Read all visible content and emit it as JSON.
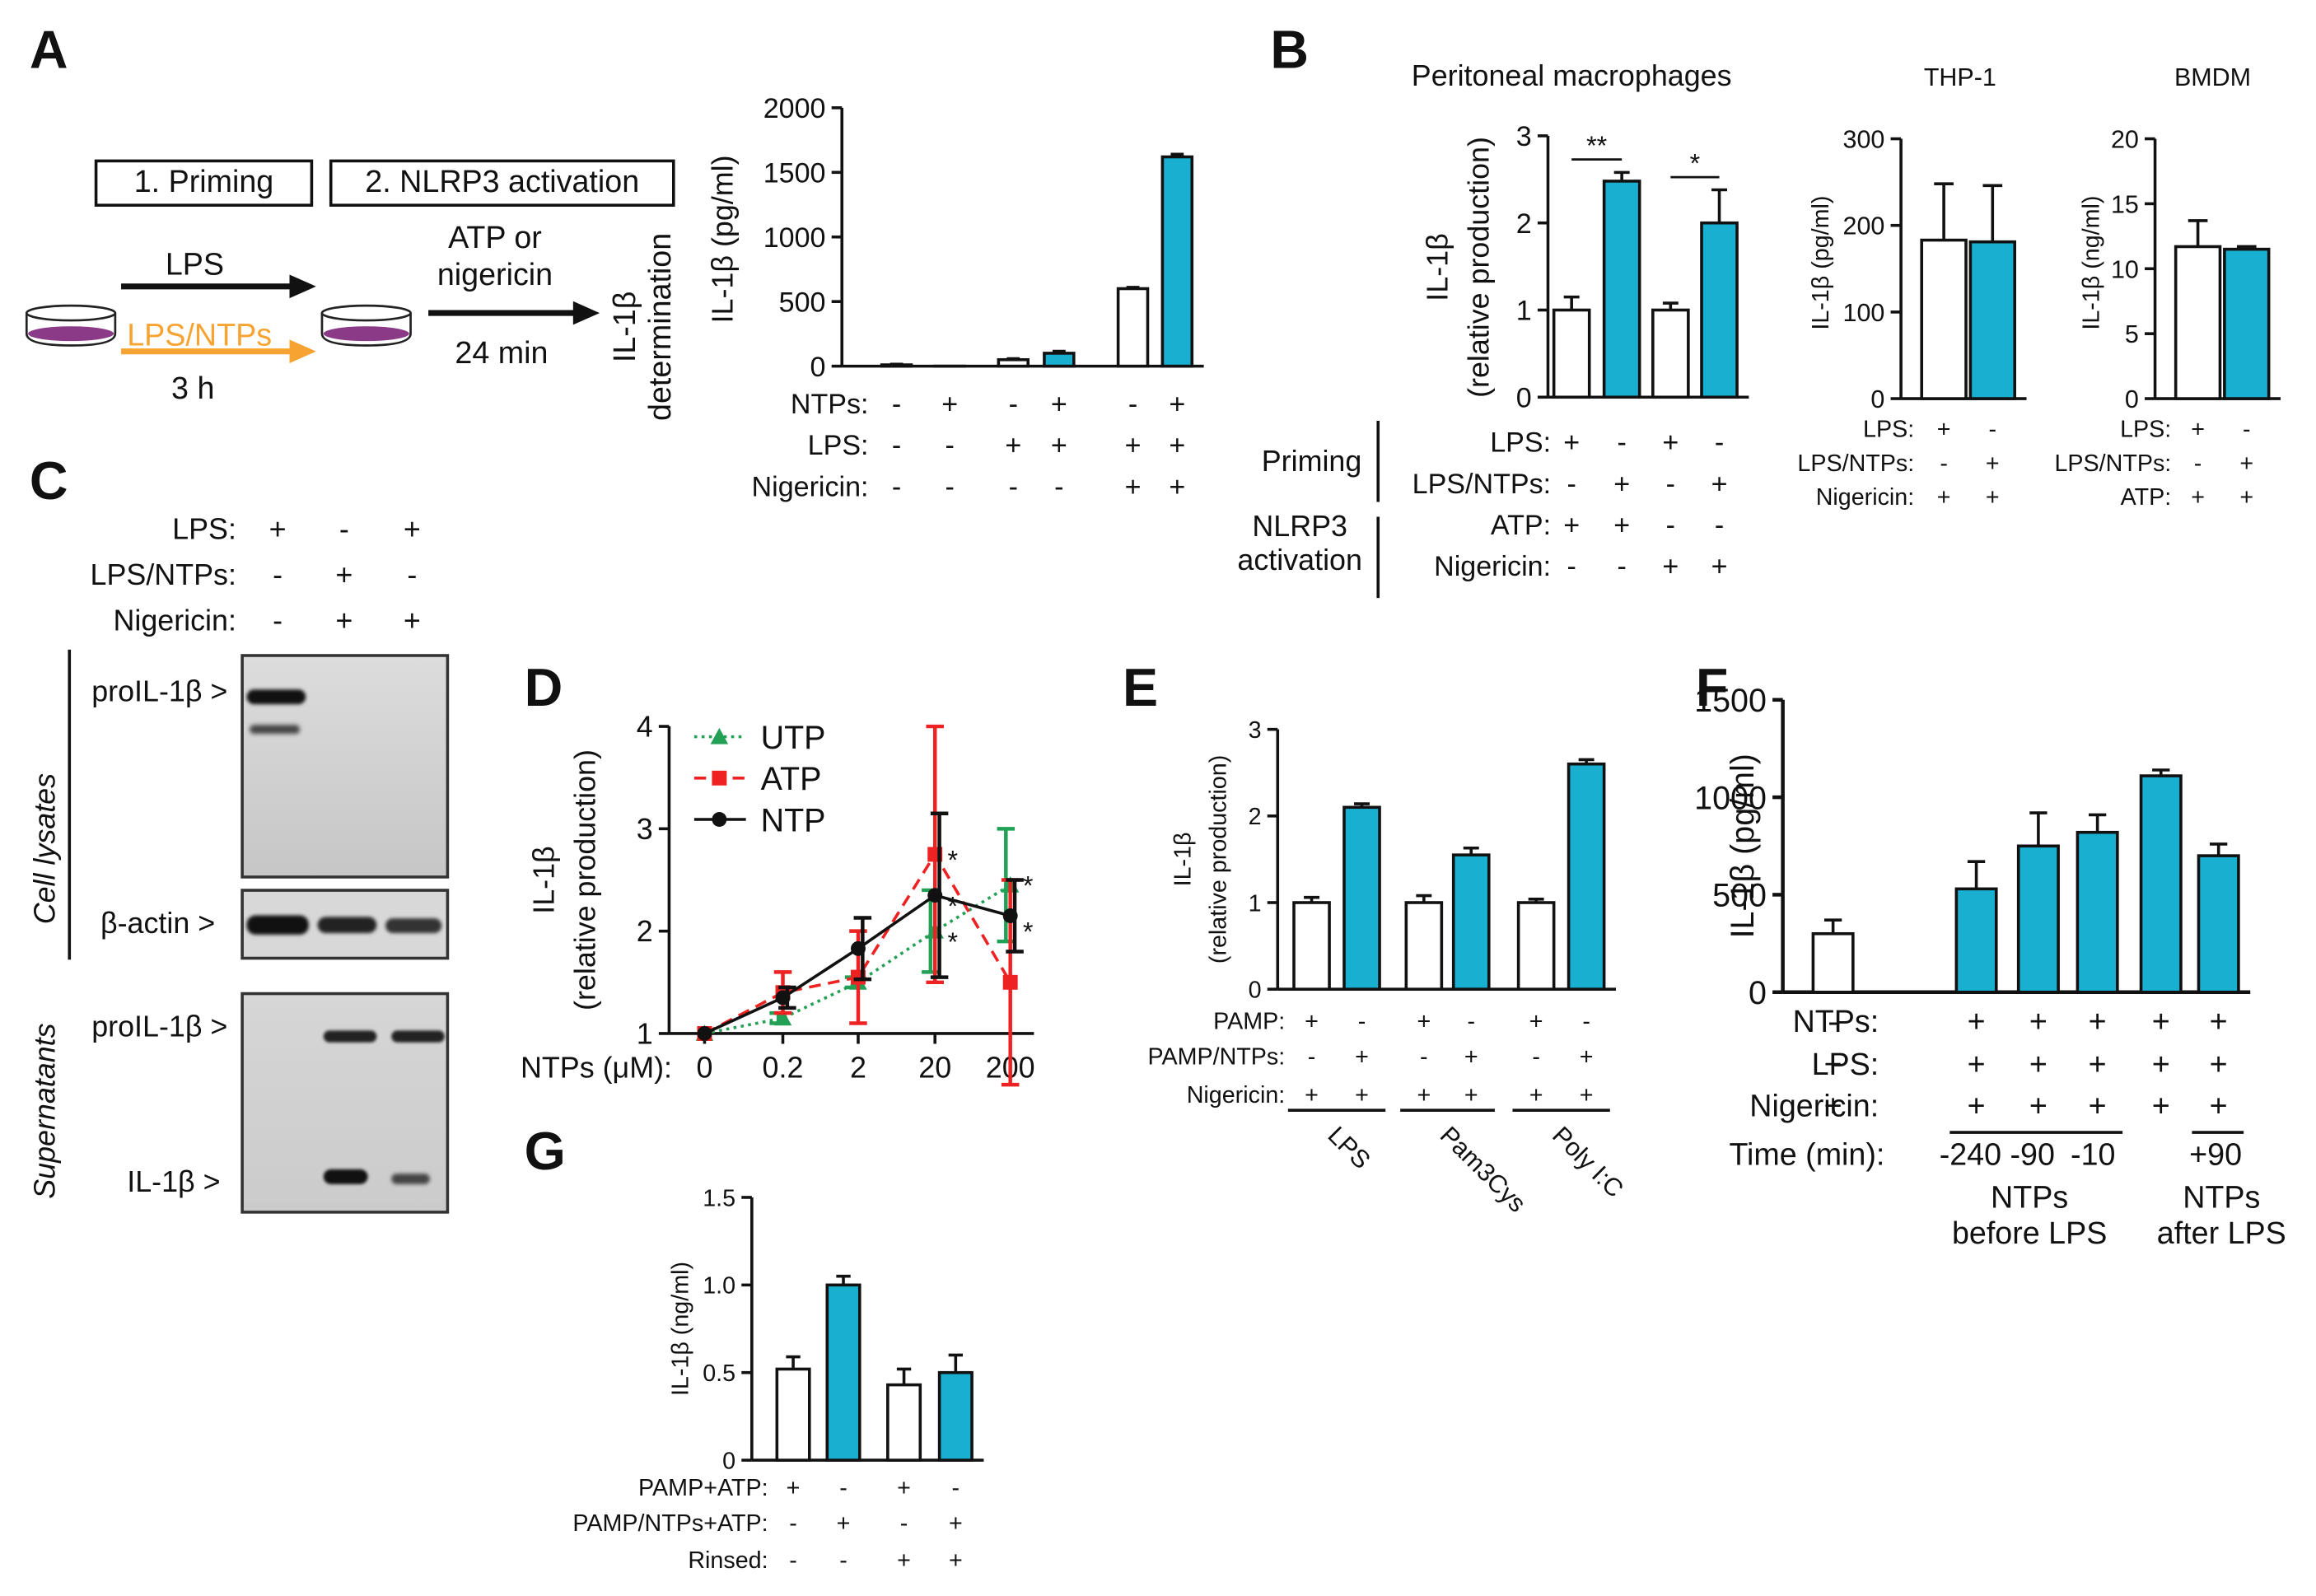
{
  "panel_labels": [
    "A",
    "B",
    "C",
    "D",
    "E",
    "F",
    "G"
  ],
  "colors": {
    "blue": "#19afd1",
    "orange": "#f7a331",
    "purple": "#8b3a87",
    "red": "#ee2222",
    "green": "#22a055",
    "black": "#111111"
  },
  "panelA": {
    "box1": "1. Priming",
    "box2": "2. NLRP3 activation",
    "lps": "LPS",
    "lps_ntps": "LPS/NTPs",
    "time1": "3 h",
    "activator": "ATP or\nnigericin",
    "time2": "24 min",
    "determination": "IL-1β\ndetermination"
  },
  "panelC": {
    "cond_labels": [
      "LPS:",
      "LPS/NTPs:",
      "Nigericin:"
    ],
    "cond_signs": [
      [
        "+",
        "-",
        "+"
      ],
      [
        "-",
        "+",
        "-"
      ],
      [
        "-",
        "+",
        "+"
      ]
    ],
    "lysates_label": "Cell lysates",
    "supernatants_label": "Supernatants",
    "band_prolil1b": "proIL-1β >",
    "band_actin": "β-actin >",
    "band_prolil1b_sup": "proIL-1β >",
    "band_il1b": "IL-1β >"
  },
  "chart_data": [
    {
      "id": "A",
      "type": "bar",
      "ylabel": "IL-1β (pg/ml)",
      "ylim": [
        0,
        2000
      ],
      "yticks": [
        0,
        500,
        1000,
        1500,
        2000
      ],
      "values": [
        10,
        0,
        50,
        100,
        600,
        1620
      ],
      "errors": [
        5,
        0,
        8,
        15,
        10,
        20
      ],
      "colors": [
        "white",
        "blue",
        "white",
        "blue",
        "white",
        "blue"
      ],
      "rows": [
        {
          "label": "NTPs:",
          "signs": [
            "-",
            "+",
            "-",
            "+",
            "-",
            "+"
          ]
        },
        {
          "label": "LPS:",
          "signs": [
            "-",
            "-",
            "+",
            "+",
            "+",
            "+"
          ]
        },
        {
          "label": "Nigericin:",
          "signs": [
            "-",
            "-",
            "-",
            "-",
            "+",
            "+"
          ]
        }
      ]
    },
    {
      "id": "B1",
      "type": "bar",
      "title": "Peritoneal macrophages",
      "ylabel": "IL-1β\n(relative production)",
      "ylim": [
        0,
        3
      ],
      "yticks": [
        0,
        1,
        2,
        3
      ],
      "values": [
        1.0,
        2.48,
        1.0,
        2.0
      ],
      "errors": [
        0.15,
        0.1,
        0.08,
        0.38
      ],
      "colors": [
        "white",
        "blue",
        "white",
        "blue"
      ],
      "significance": [
        {
          "bars": [
            0,
            1
          ],
          "text": "**"
        },
        {
          "bars": [
            2,
            3
          ],
          "text": "*"
        }
      ],
      "group_labels": [
        "Priming",
        "NLRP3\nactivation"
      ],
      "rows": [
        {
          "label": "LPS:",
          "signs": [
            "+",
            "-",
            "+",
            "-"
          ]
        },
        {
          "label": "LPS/NTPs:",
          "signs": [
            "-",
            "+",
            "-",
            "+"
          ]
        },
        {
          "label": "ATP:",
          "signs": [
            "+",
            "+",
            "-",
            "-"
          ]
        },
        {
          "label": "Nigericin:",
          "signs": [
            "-",
            "-",
            "+",
            "+"
          ]
        }
      ]
    },
    {
      "id": "B2",
      "type": "bar",
      "title": "THP-1",
      "ylabel": "IL-1β (pg/ml)",
      "ylim": [
        0,
        300
      ],
      "yticks": [
        0,
        100,
        200,
        300
      ],
      "values": [
        183,
        181
      ],
      "errors": [
        65,
        65
      ],
      "colors": [
        "white",
        "blue"
      ],
      "rows": [
        {
          "label": "LPS:",
          "signs": [
            "+",
            "-"
          ]
        },
        {
          "label": "LPS/NTPs:",
          "signs": [
            "-",
            "+"
          ]
        },
        {
          "label": "Nigericin:",
          "signs": [
            "+",
            "+"
          ]
        }
      ]
    },
    {
      "id": "B3",
      "type": "bar",
      "title": "BMDM",
      "ylabel": "IL-1β (ng/ml)",
      "ylim": [
        0,
        20
      ],
      "yticks": [
        0,
        5,
        10,
        15,
        20
      ],
      "values": [
        11.7,
        11.5
      ],
      "errors": [
        2.0,
        0.2
      ],
      "colors": [
        "white",
        "blue"
      ],
      "rows": [
        {
          "label": "LPS:",
          "signs": [
            "+",
            "-"
          ]
        },
        {
          "label": "LPS/NTPs:",
          "signs": [
            "-",
            "+"
          ]
        },
        {
          "label": "ATP:",
          "signs": [
            "+",
            "+"
          ]
        }
      ]
    },
    {
      "id": "D",
      "type": "line",
      "ylabel": "IL-1β\n(relative production)",
      "ylim": [
        1,
        4
      ],
      "yticks": [
        1,
        2,
        3,
        4
      ],
      "xlabel": "NTPs (μM):",
      "categories": [
        "0",
        "0.2",
        "2",
        "20",
        "200"
      ],
      "series": [
        {
          "name": "UTP",
          "color": "green",
          "style": "dotted",
          "marker": "triangle",
          "values": [
            1.0,
            1.15,
            1.5,
            2.0,
            2.45
          ],
          "errors": [
            0,
            0.05,
            0.05,
            0.4,
            0.55
          ]
        },
        {
          "name": "ATP",
          "color": "red",
          "style": "dashed",
          "marker": "square",
          "values": [
            1.0,
            1.4,
            1.55,
            2.75,
            1.5
          ],
          "errors": [
            0,
            0.2,
            0.45,
            1.25,
            1.0
          ]
        },
        {
          "name": "NTP",
          "color": "black",
          "style": "solid",
          "marker": "circle",
          "values": [
            1.0,
            1.35,
            1.83,
            2.35,
            2.15
          ],
          "errors": [
            0,
            0.1,
            0.3,
            0.8,
            0.35
          ]
        }
      ],
      "asterisks": [
        {
          "x": 3,
          "y": 2.75
        },
        {
          "x": 3,
          "y": 2.3
        },
        {
          "x": 3,
          "y": 1.95
        },
        {
          "x": 4,
          "y": 2.5
        },
        {
          "x": 4,
          "y": 2.05
        }
      ],
      "asterisk_text": "*"
    },
    {
      "id": "E",
      "type": "bar",
      "ylabel": "IL-1β\n(relative production)",
      "ylim": [
        0,
        3
      ],
      "yticks": [
        0,
        1,
        2,
        3
      ],
      "values": [
        1.0,
        2.1,
        1.0,
        1.55,
        1.0,
        2.6
      ],
      "errors": [
        0.06,
        0.04,
        0.08,
        0.08,
        0.04,
        0.05
      ],
      "colors": [
        "white",
        "blue",
        "white",
        "blue",
        "white",
        "blue"
      ],
      "rows": [
        {
          "label": "PAMP:",
          "signs": [
            "+",
            "-",
            "+",
            "-",
            "+",
            "-"
          ]
        },
        {
          "label": "PAMP/NTPs:",
          "signs": [
            "-",
            "+",
            "-",
            "+",
            "-",
            "+"
          ]
        },
        {
          "label": "Nigericin:",
          "signs": [
            "+",
            "+",
            "+",
            "+",
            "+",
            "+"
          ]
        }
      ],
      "group_labels": [
        "LPS",
        "Pam3Cys",
        "Poly I:C"
      ]
    },
    {
      "id": "F",
      "type": "bar",
      "ylabel": "IL-1β (pg/ml)",
      "ylim": [
        0,
        1500
      ],
      "yticks": [
        0,
        500,
        1000,
        1500
      ],
      "values": [
        300,
        530,
        750,
        820,
        1110,
        700
      ],
      "errors": [
        70,
        140,
        170,
        90,
        30,
        60
      ],
      "colors": [
        "white",
        "blue",
        "blue",
        "blue",
        "blue",
        "blue"
      ],
      "rows": [
        {
          "label": "NTPs:",
          "signs": [
            "-",
            "+",
            "+",
            "+",
            "+",
            "+"
          ]
        },
        {
          "label": "LPS:",
          "signs": [
            "+",
            "+",
            "+",
            "+",
            "+",
            "+"
          ]
        },
        {
          "label": "Nigericin:",
          "signs": [
            "+",
            "+",
            "+",
            "+",
            "+",
            "+"
          ]
        }
      ],
      "time_label": "Time (min):",
      "time_values": [
        "-240",
        "-90",
        "-10",
        "+90"
      ],
      "group_before": "NTPs\nbefore LPS",
      "group_after": "NTPs\nafter LPS"
    },
    {
      "id": "G",
      "type": "bar",
      "ylabel": "IL-1β (ng/ml)",
      "ylim": [
        0,
        1.5
      ],
      "yticks": [
        0,
        0.5,
        1.0,
        1.5
      ],
      "yticklabels": [
        "0",
        "0.5",
        "1.0",
        "1.5"
      ],
      "values": [
        0.52,
        1.0,
        0.43,
        0.5
      ],
      "errors": [
        0.07,
        0.05,
        0.09,
        0.1
      ],
      "colors": [
        "white",
        "blue",
        "white",
        "blue"
      ],
      "rows": [
        {
          "label": "PAMP+ATP:",
          "signs": [
            "+",
            "-",
            "+",
            "-"
          ]
        },
        {
          "label": "PAMP/NTPs+ATP:",
          "signs": [
            "-",
            "+",
            "-",
            "+"
          ]
        },
        {
          "label": "Rinsed:",
          "signs": [
            "-",
            "-",
            "+",
            "+"
          ]
        }
      ]
    }
  ]
}
